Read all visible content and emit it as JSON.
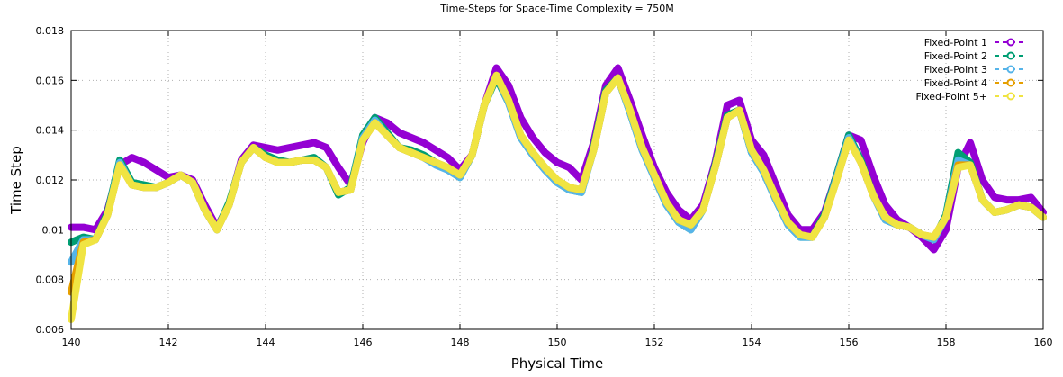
{
  "chart_data": {
    "type": "line",
    "title": "Time-Steps for Space-Time Complexity = 750M",
    "x_label": "Physical Time",
    "y_label": "Time Step",
    "xlim": [
      140,
      160
    ],
    "ylim": [
      0.006,
      0.018
    ],
    "xticks": [
      140,
      142,
      144,
      146,
      148,
      150,
      152,
      154,
      156,
      158,
      160
    ],
    "yticks": [
      0.006,
      0.008,
      0.01,
      0.012,
      0.014,
      0.016,
      0.018
    ],
    "grid": true,
    "legend": "top-right",
    "x": [
      140,
      140.25,
      140.5,
      140.75,
      141,
      141.25,
      141.5,
      141.75,
      142,
      142.25,
      142.5,
      142.75,
      143,
      143.25,
      143.5,
      143.75,
      144,
      144.25,
      144.5,
      144.75,
      145,
      145.25,
      145.5,
      145.75,
      146,
      146.25,
      146.5,
      146.75,
      147,
      147.25,
      147.5,
      147.75,
      148,
      148.25,
      148.5,
      148.75,
      149,
      149.25,
      149.5,
      149.75,
      150,
      150.25,
      150.5,
      150.75,
      151,
      151.25,
      151.5,
      151.75,
      152,
      152.25,
      152.5,
      152.75,
      153,
      153.25,
      153.5,
      153.75,
      154,
      154.25,
      154.5,
      154.75,
      155,
      155.25,
      155.5,
      155.75,
      156,
      156.25,
      156.5,
      156.75,
      157,
      157.25,
      157.5,
      157.75,
      158,
      158.25,
      158.5,
      158.75,
      159,
      159.25,
      159.5,
      159.75,
      160
    ],
    "series": [
      {
        "name": "Fixed-Point 1",
        "color": "#9400d3",
        "values": [
          0.0101,
          0.0101,
          0.01,
          0.0108,
          0.0126,
          0.0129,
          0.0127,
          0.0124,
          0.0121,
          0.0122,
          0.012,
          0.011,
          0.0101,
          0.011,
          0.0128,
          0.0134,
          0.0133,
          0.0132,
          0.0133,
          0.0134,
          0.0135,
          0.0133,
          0.0125,
          0.0118,
          0.0135,
          0.0145,
          0.0143,
          0.0139,
          0.0137,
          0.0135,
          0.0132,
          0.0129,
          0.0124,
          0.013,
          0.015,
          0.0165,
          0.0158,
          0.0145,
          0.0137,
          0.0131,
          0.0127,
          0.0125,
          0.012,
          0.0135,
          0.0158,
          0.0165,
          0.0152,
          0.0138,
          0.0125,
          0.0115,
          0.0108,
          0.0104,
          0.011,
          0.0127,
          0.015,
          0.0152,
          0.0136,
          0.013,
          0.0118,
          0.0106,
          0.01,
          0.01,
          0.0107,
          0.0122,
          0.0138,
          0.0136,
          0.0122,
          0.011,
          0.0104,
          0.0101,
          0.0097,
          0.0092,
          0.01,
          0.0125,
          0.0135,
          0.012,
          0.0113,
          0.0112,
          0.0112,
          0.0113,
          0.0107
        ]
      },
      {
        "name": "Fixed-Point 2",
        "color": "#009e73",
        "values": [
          0.0095,
          0.0097,
          0.0096,
          0.0107,
          0.0128,
          0.0119,
          0.0118,
          0.0117,
          0.0119,
          0.0122,
          0.0119,
          0.0108,
          0.01,
          0.0111,
          0.0127,
          0.0133,
          0.013,
          0.0128,
          0.0127,
          0.0128,
          0.0129,
          0.0125,
          0.0114,
          0.0117,
          0.0138,
          0.0145,
          0.0139,
          0.0133,
          0.0132,
          0.013,
          0.0127,
          0.0124,
          0.0121,
          0.013,
          0.015,
          0.0161,
          0.0151,
          0.0137,
          0.013,
          0.0124,
          0.0119,
          0.0116,
          0.0115,
          0.0133,
          0.0156,
          0.0161,
          0.0147,
          0.0132,
          0.0121,
          0.011,
          0.0103,
          0.01,
          0.0108,
          0.0126,
          0.0146,
          0.0148,
          0.0131,
          0.0123,
          0.0112,
          0.0102,
          0.0097,
          0.0097,
          0.0106,
          0.0122,
          0.0138,
          0.0128,
          0.0114,
          0.0104,
          0.0102,
          0.0101,
          0.0098,
          0.0096,
          0.0106,
          0.0131,
          0.0127,
          0.0112,
          0.0107,
          0.0108,
          0.011,
          0.0109,
          0.0105
        ]
      },
      {
        "name": "Fixed-Point 3",
        "color": "#56b4e9",
        "values": [
          0.0087,
          0.0096,
          0.0096,
          0.0106,
          0.0127,
          0.0118,
          0.0117,
          0.0117,
          0.0119,
          0.0122,
          0.0119,
          0.0108,
          0.01,
          0.011,
          0.0127,
          0.0133,
          0.0129,
          0.0127,
          0.0127,
          0.0128,
          0.0128,
          0.0125,
          0.0115,
          0.0116,
          0.0137,
          0.0144,
          0.0138,
          0.0133,
          0.0131,
          0.0129,
          0.0126,
          0.0124,
          0.0121,
          0.013,
          0.015,
          0.0162,
          0.0151,
          0.0137,
          0.013,
          0.0124,
          0.0119,
          0.0116,
          0.0115,
          0.0132,
          0.0155,
          0.0161,
          0.0147,
          0.0132,
          0.0121,
          0.011,
          0.0103,
          0.01,
          0.0108,
          0.0125,
          0.0145,
          0.0148,
          0.0131,
          0.0123,
          0.0112,
          0.0102,
          0.0097,
          0.0097,
          0.0105,
          0.0121,
          0.0137,
          0.0127,
          0.0114,
          0.0104,
          0.0102,
          0.0101,
          0.0098,
          0.0096,
          0.0105,
          0.0128,
          0.0126,
          0.0112,
          0.0107,
          0.0108,
          0.011,
          0.0109,
          0.0105
        ]
      },
      {
        "name": "Fixed-Point 4",
        "color": "#e69f00",
        "values": [
          0.0075,
          0.0095,
          0.0096,
          0.0106,
          0.0126,
          0.0118,
          0.0117,
          0.0117,
          0.0119,
          0.0122,
          0.0119,
          0.0108,
          0.01,
          0.011,
          0.0127,
          0.0133,
          0.0129,
          0.0127,
          0.0127,
          0.0128,
          0.0128,
          0.0125,
          0.0115,
          0.0116,
          0.0136,
          0.0143,
          0.0138,
          0.0133,
          0.0131,
          0.0129,
          0.0127,
          0.0125,
          0.0122,
          0.013,
          0.015,
          0.0162,
          0.0152,
          0.0138,
          0.0131,
          0.0125,
          0.012,
          0.0117,
          0.0116,
          0.0132,
          0.0155,
          0.0161,
          0.0148,
          0.0133,
          0.0122,
          0.0111,
          0.0104,
          0.0102,
          0.0108,
          0.0125,
          0.0145,
          0.0148,
          0.0132,
          0.0124,
          0.0113,
          0.0103,
          0.0098,
          0.0097,
          0.0105,
          0.012,
          0.0136,
          0.0127,
          0.0114,
          0.0105,
          0.0102,
          0.0101,
          0.0098,
          0.0097,
          0.0105,
          0.0126,
          0.0126,
          0.0112,
          0.0107,
          0.0108,
          0.011,
          0.0109,
          0.0105
        ]
      },
      {
        "name": "Fixed-Point 5+",
        "color": "#f0e442",
        "values": [
          0.0064,
          0.0094,
          0.0096,
          0.0106,
          0.0126,
          0.0118,
          0.0117,
          0.0117,
          0.0119,
          0.0122,
          0.0119,
          0.0108,
          0.01,
          0.011,
          0.0127,
          0.0133,
          0.0129,
          0.0127,
          0.0127,
          0.0128,
          0.0128,
          0.0125,
          0.0115,
          0.0116,
          0.0136,
          0.0143,
          0.0138,
          0.0133,
          0.0131,
          0.0129,
          0.0127,
          0.0125,
          0.0122,
          0.013,
          0.015,
          0.0162,
          0.0152,
          0.0138,
          0.0131,
          0.0125,
          0.012,
          0.0117,
          0.0116,
          0.0132,
          0.0155,
          0.0161,
          0.0148,
          0.0133,
          0.0122,
          0.0111,
          0.0104,
          0.0102,
          0.0108,
          0.0125,
          0.0145,
          0.0148,
          0.0132,
          0.0124,
          0.0113,
          0.0103,
          0.0098,
          0.0097,
          0.0105,
          0.012,
          0.0136,
          0.0127,
          0.0114,
          0.0105,
          0.0102,
          0.0101,
          0.0098,
          0.0097,
          0.0105,
          0.0125,
          0.0126,
          0.0112,
          0.0107,
          0.0108,
          0.011,
          0.0109,
          0.0105
        ]
      }
    ]
  }
}
